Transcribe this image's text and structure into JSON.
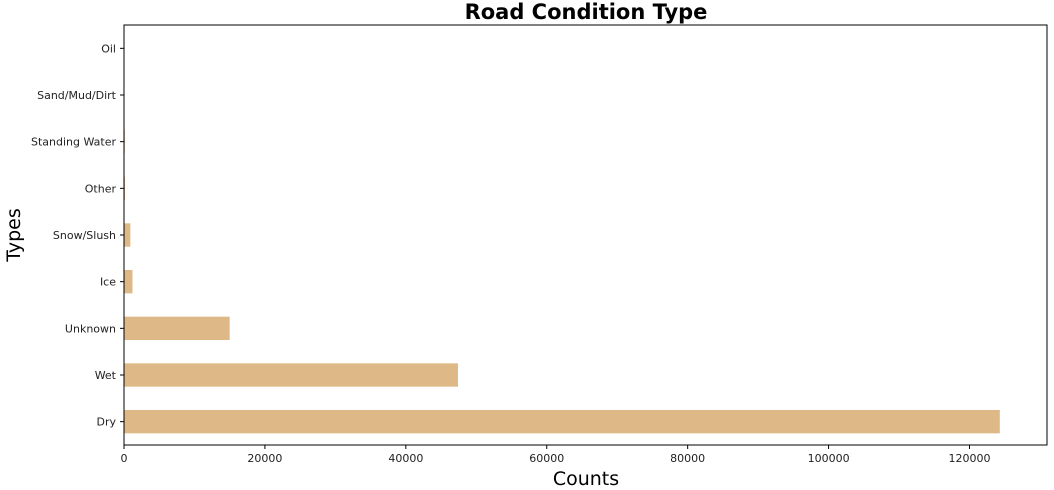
{
  "chart_data": {
    "type": "bar",
    "orientation": "horizontal",
    "title": "Road Condition Type",
    "xlabel": "Counts",
    "ylabel": "Types",
    "categories": [
      "Dry",
      "Wet",
      "Unknown",
      "Ice",
      "Snow/Slush",
      "Other",
      "Standing Water",
      "Sand/Mud/Dirt",
      "Oil"
    ],
    "values": [
      124300,
      47400,
      15000,
      1200,
      900,
      130,
      110,
      70,
      40
    ],
    "xlim": [
      0,
      131000
    ],
    "xticks": [
      0,
      20000,
      40000,
      60000,
      80000,
      100000,
      120000
    ],
    "xtick_labels": [
      "0",
      "20000",
      "40000",
      "60000",
      "80000",
      "100000",
      "120000"
    ],
    "bar_color": "#deb887",
    "grid": false,
    "legend": "none"
  }
}
